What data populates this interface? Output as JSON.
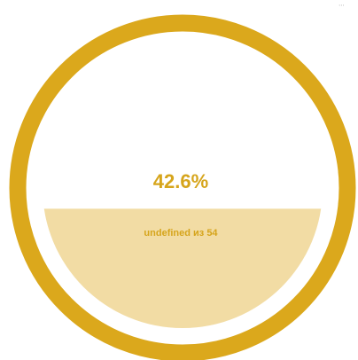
{
  "gauge": {
    "fill_fraction": 0.426,
    "percent_text": "42.6%",
    "count_text": "undefined из 54",
    "ring_color": "#dba81c",
    "fill_color": "#f2dca4",
    "text_color": "#d6a51c"
  },
  "corner_marks": "⋯"
}
